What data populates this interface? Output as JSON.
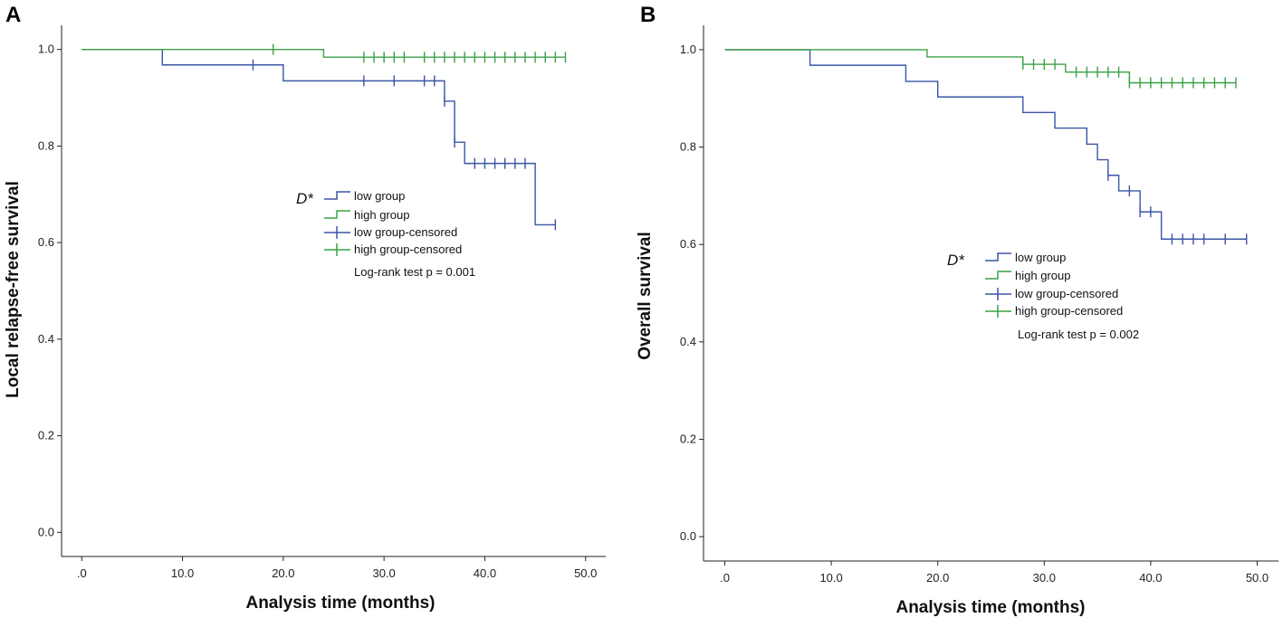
{
  "chart_data": [
    {
      "type": "line",
      "panel_label": "A",
      "xlabel": "Analysis time (months)",
      "ylabel": "Local relapse-free survival",
      "xlim": [
        -2,
        52
      ],
      "ylim": [
        -0.05,
        1.05
      ],
      "xticks": [
        ".0",
        "10.0",
        "20.0",
        "30.0",
        "40.0",
        "50.0"
      ],
      "yticks": [
        "0.0",
        "0.2",
        "0.4",
        "0.6",
        "0.8",
        "1.0"
      ],
      "legend_title": "D*",
      "legend_labels": [
        "low group",
        "high group",
        "low group-censored",
        "high group-censored"
      ],
      "note": "Log-rank test p = 0.001",
      "series": [
        {
          "name": "low group",
          "color": "#3b55a6",
          "steps": [
            [
              0,
              1.0
            ],
            [
              8,
              0.968
            ],
            [
              20,
              0.935
            ],
            [
              36,
              0.893
            ],
            [
              37,
              0.808
            ],
            [
              38,
              0.764
            ],
            [
              45,
              0.637
            ]
          ],
          "end_x": 47,
          "censored": [
            [
              17,
              0.968
            ],
            [
              28,
              0.935
            ],
            [
              31,
              0.935
            ],
            [
              34,
              0.935
            ],
            [
              35,
              0.935
            ],
            [
              36,
              0.893
            ],
            [
              37,
              0.808
            ],
            [
              39,
              0.764
            ],
            [
              40,
              0.764
            ],
            [
              41,
              0.764
            ],
            [
              42,
              0.764
            ],
            [
              43,
              0.764
            ],
            [
              44,
              0.764
            ],
            [
              47,
              0.637
            ]
          ]
        },
        {
          "name": "high group",
          "color": "#3aa146",
          "steps": [
            [
              0,
              1.0
            ],
            [
              24,
              0.984
            ]
          ],
          "end_x": 48,
          "censored": [
            [
              19,
              1.0
            ],
            [
              28,
              0.984
            ],
            [
              29,
              0.984
            ],
            [
              30,
              0.984
            ],
            [
              31,
              0.984
            ],
            [
              32,
              0.984
            ],
            [
              34,
              0.984
            ],
            [
              35,
              0.984
            ],
            [
              36,
              0.984
            ],
            [
              37,
              0.984
            ],
            [
              38,
              0.984
            ],
            [
              39,
              0.984
            ],
            [
              40,
              0.984
            ],
            [
              41,
              0.984
            ],
            [
              42,
              0.984
            ],
            [
              43,
              0.984
            ],
            [
              44,
              0.984
            ],
            [
              45,
              0.984
            ],
            [
              46,
              0.984
            ],
            [
              47,
              0.984
            ],
            [
              48,
              0.984
            ]
          ]
        }
      ]
    },
    {
      "type": "line",
      "panel_label": "B",
      "xlabel": "Analysis time (months)",
      "ylabel": "Overall survival",
      "xlim": [
        -2,
        52
      ],
      "ylim": [
        -0.05,
        1.05
      ],
      "xticks": [
        ".0",
        "10.0",
        "20.0",
        "30.0",
        "40.0",
        "50.0"
      ],
      "yticks": [
        "0.0",
        "0.2",
        "0.4",
        "0.6",
        "0.8",
        "1.0"
      ],
      "legend_title": "D*",
      "legend_labels": [
        "low group",
        "high group",
        "low group-censored",
        "high group-censored"
      ],
      "note": "Log-rank test p = 0.002",
      "series": [
        {
          "name": "low group",
          "color": "#3b55a6",
          "steps": [
            [
              0,
              1.0
            ],
            [
              8,
              0.968
            ],
            [
              17,
              0.935
            ],
            [
              20,
              0.903
            ],
            [
              28,
              0.871
            ],
            [
              31,
              0.839
            ],
            [
              34,
              0.806
            ],
            [
              35,
              0.774
            ],
            [
              36,
              0.742
            ],
            [
              37,
              0.71
            ],
            [
              39,
              0.667
            ],
            [
              41,
              0.611
            ]
          ],
          "end_x": 49,
          "censored": [
            [
              36,
              0.742
            ],
            [
              38,
              0.71
            ],
            [
              39,
              0.667
            ],
            [
              40,
              0.667
            ],
            [
              42,
              0.611
            ],
            [
              43,
              0.611
            ],
            [
              44,
              0.611
            ],
            [
              45,
              0.611
            ],
            [
              47,
              0.611
            ],
            [
              49,
              0.611
            ]
          ]
        },
        {
          "name": "high group",
          "color": "#3aa146",
          "steps": [
            [
              0,
              1.0
            ],
            [
              19,
              0.985
            ],
            [
              28,
              0.97
            ],
            [
              32,
              0.954
            ],
            [
              38,
              0.932
            ]
          ],
          "end_x": 48,
          "censored": [
            [
              28,
              0.97
            ],
            [
              29,
              0.97
            ],
            [
              30,
              0.97
            ],
            [
              31,
              0.97
            ],
            [
              33,
              0.954
            ],
            [
              34,
              0.954
            ],
            [
              35,
              0.954
            ],
            [
              36,
              0.954
            ],
            [
              37,
              0.954
            ],
            [
              38,
              0.932
            ],
            [
              39,
              0.932
            ],
            [
              40,
              0.932
            ],
            [
              41,
              0.932
            ],
            [
              42,
              0.932
            ],
            [
              43,
              0.932
            ],
            [
              44,
              0.932
            ],
            [
              45,
              0.932
            ],
            [
              46,
              0.932
            ],
            [
              47,
              0.932
            ],
            [
              48,
              0.932
            ]
          ]
        }
      ]
    }
  ]
}
